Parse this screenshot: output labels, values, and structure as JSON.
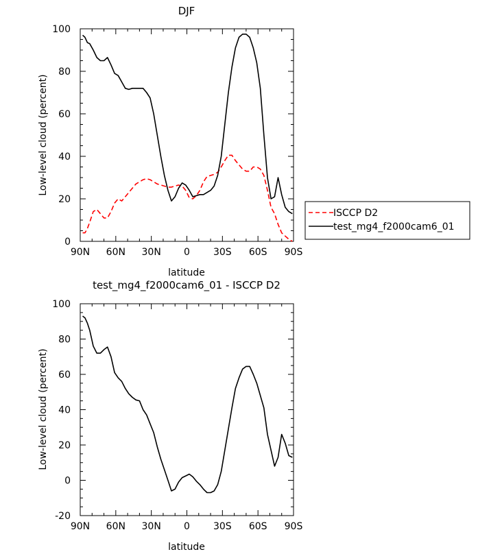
{
  "chart_data": [
    {
      "type": "line",
      "title": "DJF",
      "xlabel": "latitude",
      "ylabel": "Low-level cloud (percent)",
      "xlim": [
        -90,
        90
      ],
      "ylim": [
        0,
        100
      ],
      "xticks": [
        -90,
        -60,
        -30,
        0,
        30,
        60,
        90
      ],
      "xtick_labels": [
        "90N",
        "60N",
        "30N",
        "0",
        "30S",
        "60S",
        "90S"
      ],
      "yticks": [
        0,
        20,
        40,
        60,
        80,
        100
      ],
      "ytick_labels": [
        "0",
        "20",
        "40",
        "60",
        "80",
        "100"
      ],
      "legend_position": "right",
      "series": [
        {
          "name": "ISCCP D2",
          "color": "#ff0000",
          "dash": "dashed",
          "x": [
            -88,
            -86,
            -84,
            -82,
            -79,
            -76,
            -73,
            -70,
            -67,
            -64,
            -61,
            -58,
            -55,
            -52,
            -49,
            -46,
            -43,
            -40,
            -37,
            -34,
            -31,
            -28,
            -25,
            -22,
            -19,
            -16,
            -13,
            -10,
            -7,
            -4,
            -1,
            2,
            5,
            8,
            11,
            14,
            17,
            20,
            23,
            26,
            29,
            32,
            35,
            38,
            41,
            44,
            47,
            50,
            53,
            56,
            59,
            62,
            65,
            68,
            71,
            74,
            77,
            80,
            83,
            86,
            89
          ],
          "y": [
            4,
            4,
            6,
            9,
            14,
            15,
            13,
            11,
            11,
            14,
            18,
            20,
            19,
            21,
            23,
            25,
            27,
            28,
            29,
            29.5,
            29,
            28,
            27,
            26.5,
            26,
            25.5,
            25.5,
            26,
            26.5,
            26,
            24,
            20.5,
            20,
            21.5,
            24,
            28,
            30.5,
            31,
            31.5,
            32.5,
            35,
            38,
            40.5,
            40.5,
            38,
            36,
            34,
            33,
            33,
            35,
            35,
            34,
            31,
            24,
            16,
            13,
            8,
            4,
            2.5,
            1,
            0
          ]
        },
        {
          "name": "test_mg4_f2000cam6_01",
          "color": "#000000",
          "dash": "solid",
          "x": [
            -88,
            -86,
            -84,
            -82,
            -79,
            -76,
            -73,
            -70,
            -67,
            -64,
            -61,
            -58,
            -55,
            -52,
            -49,
            -46,
            -43,
            -40,
            -37,
            -34,
            -31,
            -28,
            -25,
            -22,
            -19,
            -16,
            -13,
            -10,
            -7,
            -4,
            -1,
            2,
            5,
            8,
            11,
            14,
            17,
            20,
            23,
            26,
            29,
            32,
            35,
            38,
            41,
            44,
            47,
            50,
            53,
            56,
            59,
            62,
            65,
            68,
            71,
            74,
            77,
            80,
            83,
            86,
            89
          ],
          "y": [
            97,
            96,
            93.5,
            93,
            90,
            86.5,
            85,
            85,
            86.5,
            83,
            79,
            78,
            75,
            72,
            71.5,
            72,
            72,
            72,
            72,
            70,
            67.5,
            60,
            50,
            40,
            31,
            24,
            19,
            21,
            25,
            27.5,
            26.5,
            24,
            21,
            21.5,
            22,
            22,
            23,
            24,
            26,
            31,
            40,
            55,
            70,
            82,
            91,
            96,
            97.5,
            97.5,
            96,
            91,
            84,
            72,
            50,
            30,
            20,
            21,
            30,
            22,
            16,
            14,
            13
          ]
        }
      ]
    },
    {
      "type": "line",
      "title": "test_mg4_f2000cam6_01 - ISCCP D2",
      "xlabel": "latitude",
      "ylabel": "Low-level cloud (percent)",
      "xlim": [
        -90,
        90
      ],
      "ylim": [
        -20,
        100
      ],
      "xticks": [
        -90,
        -60,
        -30,
        0,
        30,
        60,
        90
      ],
      "xtick_labels": [
        "90N",
        "60N",
        "30N",
        "0",
        "30S",
        "60S",
        "90S"
      ],
      "yticks": [
        -20,
        0,
        20,
        40,
        60,
        80,
        100
      ],
      "ytick_labels": [
        "-20",
        "0",
        "20",
        "40",
        "60",
        "80",
        "100"
      ],
      "series": [
        {
          "color": "#000000",
          "dash": "solid",
          "x": [
            -88,
            -86,
            -84,
            -82,
            -79,
            -76,
            -73,
            -70,
            -67,
            -64,
            -61,
            -58,
            -55,
            -52,
            -49,
            -46,
            -43,
            -40,
            -37,
            -34,
            -31,
            -28,
            -25,
            -22,
            -19,
            -16,
            -13,
            -10,
            -7,
            -4,
            -1,
            2,
            5,
            8,
            11,
            14,
            17,
            20,
            23,
            26,
            29,
            32,
            35,
            38,
            41,
            44,
            47,
            50,
            53,
            56,
            59,
            62,
            65,
            68,
            71,
            74,
            77,
            80,
            83,
            86,
            89
          ],
          "y": [
            93,
            92,
            89,
            85,
            76,
            72,
            72,
            74,
            75.5,
            70,
            61,
            58,
            56,
            52,
            49,
            47,
            45.5,
            45,
            40,
            37,
            32,
            27,
            19,
            12,
            6,
            0,
            -6,
            -5,
            -1,
            1.5,
            2.5,
            3.5,
            2,
            -0.5,
            -2.5,
            -5,
            -7,
            -7,
            -6,
            -2.5,
            5,
            17,
            29,
            41,
            52,
            58,
            63,
            64.5,
            64.5,
            60,
            55,
            48,
            41,
            26,
            17,
            8,
            13,
            26,
            21,
            14,
            13
          ]
        }
      ]
    }
  ]
}
